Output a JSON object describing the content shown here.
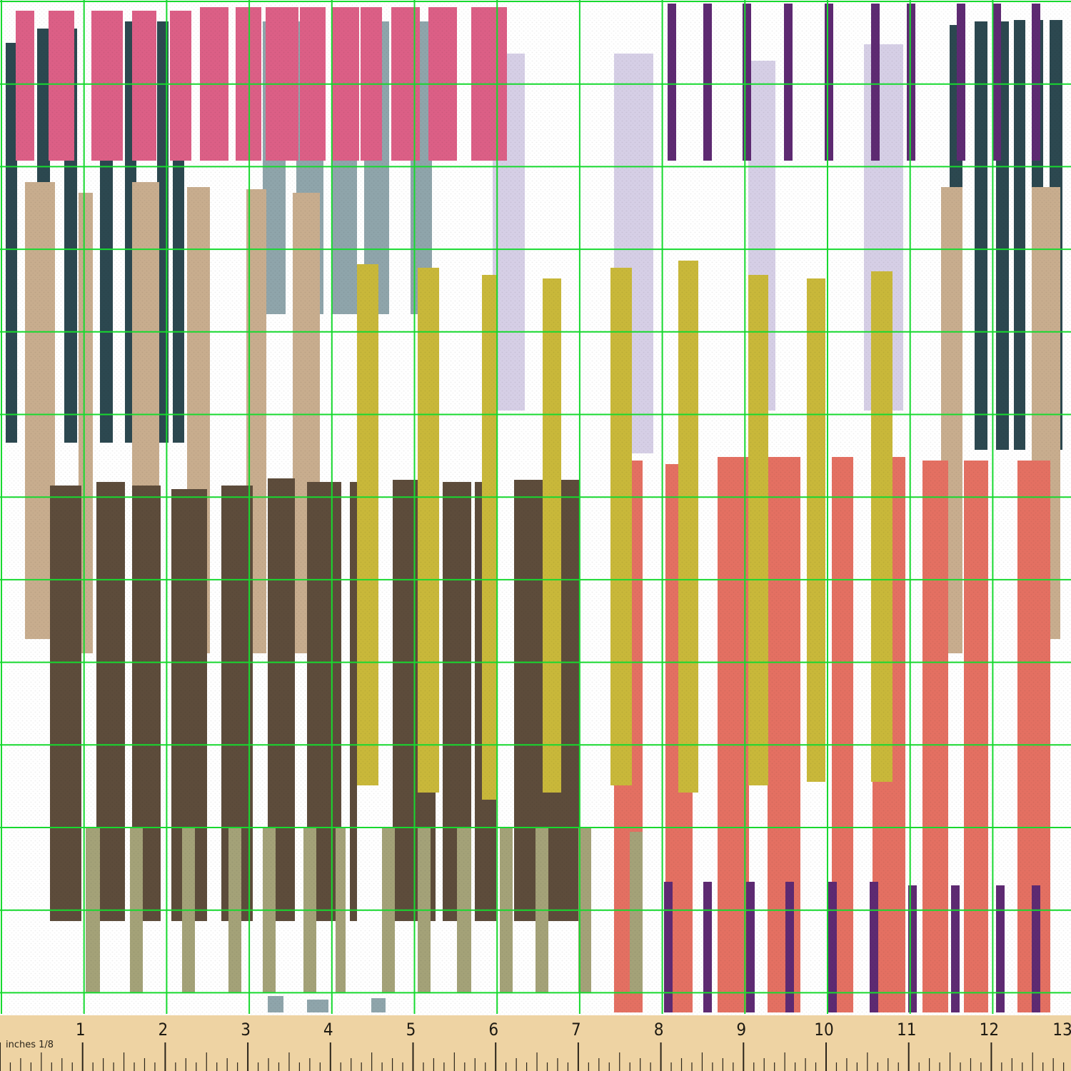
{
  "fabric": {
    "description_colors": {
      "background": "#ffffff",
      "pink": "#dc5f86",
      "navy": "#2c4850",
      "tan": "#c8ad8e",
      "steel_blue": "#8fa5ab",
      "lavender": "#d6cfe6",
      "purple": "#5e2a72",
      "mustard": "#c9b83a",
      "dark_brown": "#5d4c3b",
      "olive": "#a4a278",
      "coral": "#e47062",
      "grid_line": "#17d92f"
    }
  },
  "ruler": {
    "label": "inches 1/8",
    "numbers": [
      "1",
      "2",
      "3",
      "4",
      "5",
      "6",
      "7",
      "8",
      "9",
      "10",
      "11",
      "12",
      "13"
    ],
    "background": "#eed3a3",
    "tick_color": "#2a241a"
  }
}
